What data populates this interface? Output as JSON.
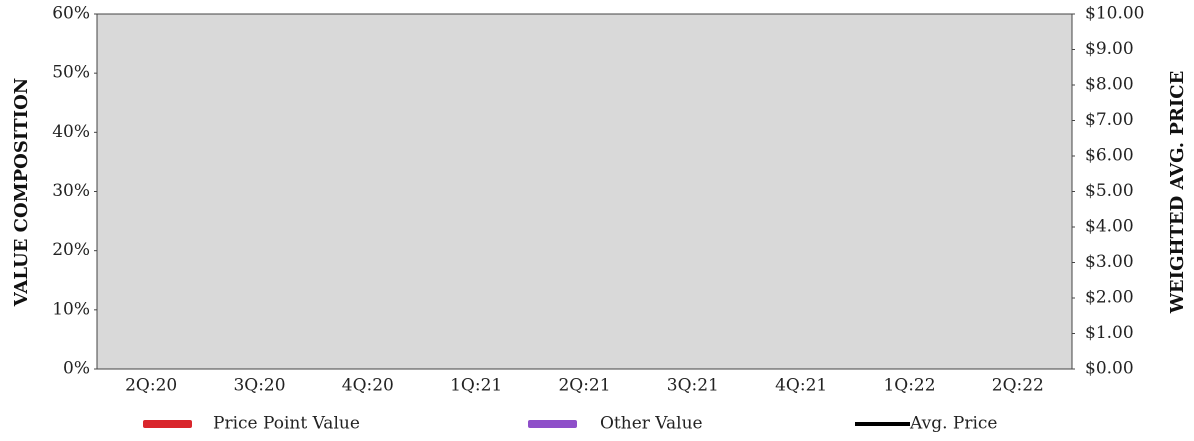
{
  "chart_data": {
    "type": "bar",
    "categories": [
      "2Q:20",
      "3Q:20",
      "4Q:20",
      "1Q:21",
      "2Q:21",
      "3Q:21",
      "4Q:21",
      "1Q:22",
      "2Q:22"
    ],
    "series": [
      {
        "name": "Price Point Value",
        "color": "#d9262c",
        "values": [
          null,
          null,
          null,
          null,
          null,
          null,
          null,
          null,
          null
        ]
      },
      {
        "name": "Other Value",
        "color": "#8e4fc9",
        "values": [
          null,
          null,
          null,
          null,
          null,
          null,
          null,
          null,
          null
        ]
      },
      {
        "name": "Avg. Price",
        "color": "#000000",
        "axis": "y2",
        "type": "line",
        "values": [
          null,
          null,
          null,
          null,
          null,
          null,
          null,
          null,
          null
        ]
      }
    ],
    "y_label": "VALUE COMPOSITION",
    "y2_label": "WEIGHTED AVG. PRICE",
    "ylim": [
      0,
      60
    ],
    "yticks": [
      {
        "value": 0,
        "label": "0%"
      },
      {
        "value": 10,
        "label": "10%"
      },
      {
        "value": 20,
        "label": "20%"
      },
      {
        "value": 30,
        "label": "30%"
      },
      {
        "value": 40,
        "label": "40%"
      },
      {
        "value": 50,
        "label": "50%"
      },
      {
        "value": 60,
        "label": "60%"
      }
    ],
    "y2lim": [
      0,
      10
    ],
    "y2ticks": [
      {
        "value": 0,
        "label": "$0.00"
      },
      {
        "value": 1,
        "label": "$1.00"
      },
      {
        "value": 2,
        "label": "$2.00"
      },
      {
        "value": 3,
        "label": "$3.00"
      },
      {
        "value": 4,
        "label": "$4.00"
      },
      {
        "value": 5,
        "label": "$5.00"
      },
      {
        "value": 6,
        "label": "$6.00"
      },
      {
        "value": 7,
        "label": "$7.00"
      },
      {
        "value": 8,
        "label": "$8.00"
      },
      {
        "value": 9,
        "label": "$9.00"
      },
      {
        "value": 10,
        "label": "$10.00"
      }
    ],
    "stacked": true,
    "plot_background": "#d9d9d9",
    "legend": "bottom"
  }
}
